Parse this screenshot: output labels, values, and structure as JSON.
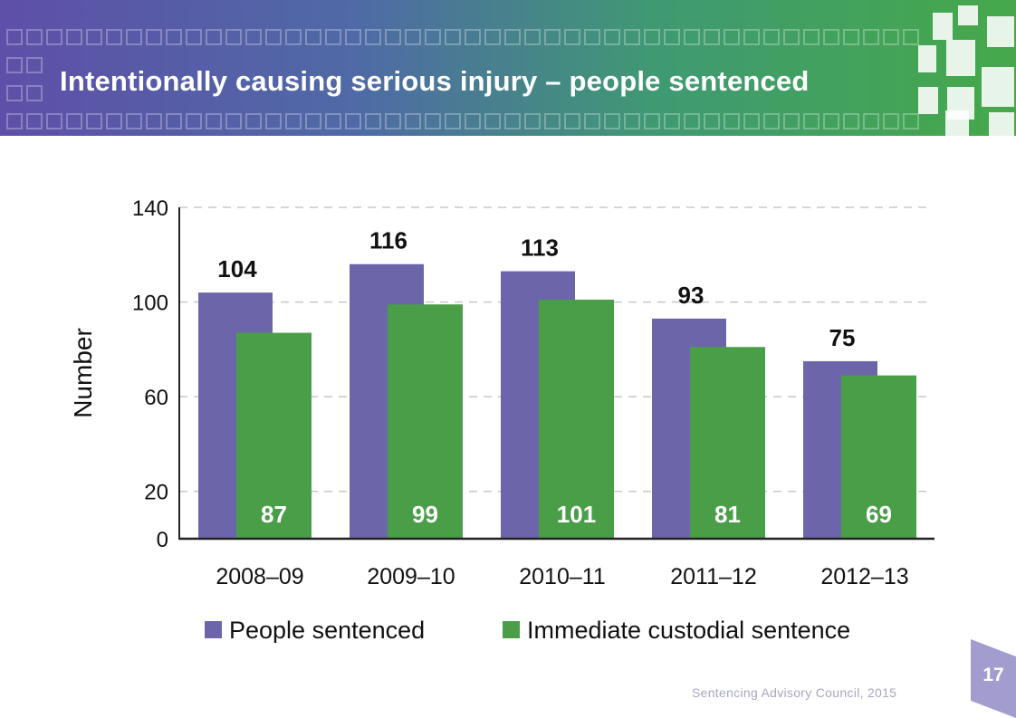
{
  "slide": {
    "title": "Intentionally causing serious injury – people sentenced",
    "page_number": "17",
    "footer": "Sentencing Advisory Council, 2015"
  },
  "colors": {
    "people_sentenced": "#6c65aa",
    "immediate_custodial": "#4a9e48",
    "header_left": "#5e4fa8",
    "header_right": "#46a84a"
  },
  "chart_data": {
    "type": "bar",
    "title": "",
    "xlabel": "",
    "ylabel": "Number",
    "ylim": [
      0,
      140
    ],
    "yticks": [
      0,
      20,
      60,
      100,
      140
    ],
    "grid": "dashed horizontal",
    "legend_position": "bottom",
    "categories": [
      "2008–09",
      "2009–10",
      "2010–11",
      "2011–12",
      "2012–13"
    ],
    "series": [
      {
        "name": "People sentenced",
        "values": [
          104,
          116,
          113,
          93,
          75
        ],
        "labels": [
          "104",
          "116",
          "113",
          "93",
          "75"
        ]
      },
      {
        "name": "Immediate custodial sentence",
        "values": [
          87,
          99,
          101,
          81,
          69
        ],
        "labels": [
          "87",
          "99",
          "101",
          "81",
          "69"
        ]
      }
    ]
  }
}
